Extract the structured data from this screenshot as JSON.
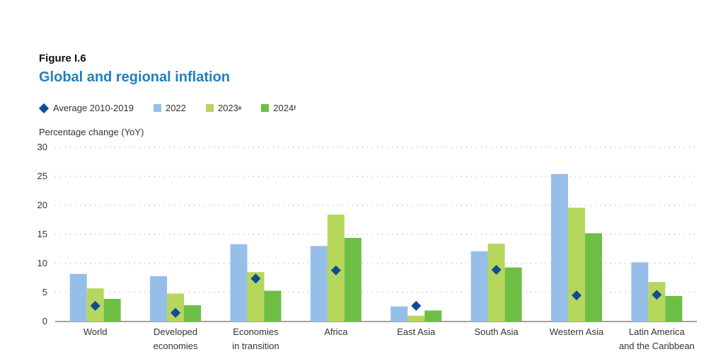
{
  "figure": {
    "label": "Figure I.6",
    "title": "Global and regional inflation"
  },
  "legend": [
    {
      "name": "Average 2010-2019",
      "base": "Average 2010-2019",
      "sup": "",
      "color": "#0d4c97",
      "shape": "diamond"
    },
    {
      "name": "2022",
      "base": "2022",
      "sup": "",
      "color": "#96bfe8",
      "shape": "square"
    },
    {
      "name": "2023e",
      "base": "2023",
      "sup": "e",
      "color": "#b6d65c",
      "shape": "square"
    },
    {
      "name": "2024f",
      "base": "2024",
      "sup": "f",
      "color": "#6cbf44",
      "shape": "square"
    }
  ],
  "chart_data": {
    "type": "bar",
    "ylabel": "Percentage change (YoY)",
    "ylim": [
      0,
      30
    ],
    "yticks": [
      0,
      5,
      10,
      15,
      20,
      25,
      30
    ],
    "grid": true,
    "legend_position": "top-left",
    "categories": [
      [
        "World"
      ],
      [
        "Developed",
        "economies"
      ],
      [
        "Economies",
        "in transition"
      ],
      [
        "Africa"
      ],
      [
        "East Asia"
      ],
      [
        "South Asia"
      ],
      [
        "Western Asia"
      ],
      [
        "Latin America",
        "and the Caribbean"
      ]
    ],
    "series": [
      {
        "name": "2022",
        "color": "#96bfe8",
        "values": [
          8.2,
          7.8,
          13.3,
          13.0,
          2.6,
          12.1,
          25.4,
          10.2
        ]
      },
      {
        "name": "2023e",
        "color": "#b6d65c",
        "values": [
          5.7,
          4.8,
          8.5,
          18.4,
          1.0,
          13.4,
          19.6,
          6.8
        ]
      },
      {
        "name": "2024f",
        "color": "#6cbf44",
        "values": [
          3.9,
          2.8,
          5.3,
          14.4,
          1.9,
          9.3,
          15.2,
          4.4
        ]
      }
    ],
    "markers": {
      "name": "Average 2010-2019",
      "color": "#0d4c97",
      "values": [
        2.7,
        1.5,
        7.4,
        8.8,
        2.7,
        8.9,
        4.5,
        4.6
      ]
    }
  }
}
